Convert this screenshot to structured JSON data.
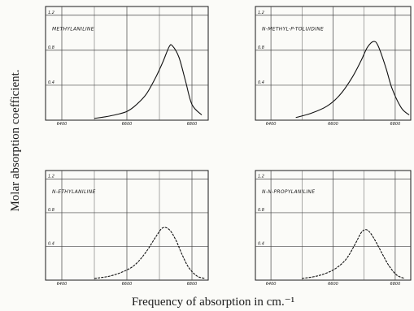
{
  "figure": {
    "ylabel": "Molar absorption coefficient.",
    "xlabel": "Frequency of absorption in cm.⁻¹"
  },
  "chart_data": [
    {
      "type": "line",
      "title": "Methylaniline",
      "title_display": "Methylaniline",
      "xlim": [
        6350,
        6850
      ],
      "ylim": [
        0.0,
        1.3
      ],
      "x_ticks": [
        6400,
        6600,
        6800
      ],
      "x_tick_labels": [
        "6400",
        "6600",
        "6800"
      ],
      "y_ticks": [
        0.4,
        0.8,
        1.2
      ],
      "y_tick_labels": [
        "0.4",
        "0.8",
        "1.2"
      ],
      "grid": true,
      "x": [
        6500,
        6550,
        6600,
        6630,
        6660,
        6690,
        6710,
        6730,
        6740,
        6760,
        6780,
        6800,
        6830
      ],
      "y": [
        0.02,
        0.05,
        0.1,
        0.18,
        0.3,
        0.5,
        0.66,
        0.84,
        0.85,
        0.72,
        0.45,
        0.18,
        0.06
      ]
    },
    {
      "type": "line",
      "title": "N-Methyl-p-Toluidine",
      "title_display": "N-Methyl-p-Toluidine",
      "xlim": [
        6350,
        6850
      ],
      "ylim": [
        0.0,
        1.3
      ],
      "x_ticks": [
        6400,
        6600,
        6800
      ],
      "x_tick_labels": [
        "6400",
        "6600",
        "6800"
      ],
      "y_ticks": [
        0.4,
        0.8,
        1.2
      ],
      "y_tick_labels": [
        "0.4",
        "0.8",
        "1.2"
      ],
      "grid": true,
      "x": [
        6480,
        6530,
        6580,
        6620,
        6660,
        6690,
        6710,
        6730,
        6745,
        6770,
        6790,
        6820,
        6845
      ],
      "y": [
        0.03,
        0.08,
        0.16,
        0.28,
        0.48,
        0.68,
        0.83,
        0.9,
        0.85,
        0.6,
        0.36,
        0.14,
        0.06
      ]
    },
    {
      "type": "line",
      "title": "N-Ethylaniline",
      "title_display": "N-Ethylaniline",
      "xlim": [
        6350,
        6850
      ],
      "ylim": [
        0.0,
        1.3
      ],
      "x_ticks": [
        6400,
        6600,
        6800
      ],
      "x_tick_labels": [
        "6400",
        "6600",
        "6800"
      ],
      "y_ticks": [
        0.4,
        0.8,
        1.2
      ],
      "y_tick_labels": [
        "0.4",
        "0.8",
        "1.2"
      ],
      "grid": true,
      "x": [
        6500,
        6550,
        6600,
        6630,
        6660,
        6690,
        6710,
        6730,
        6750,
        6770,
        6790,
        6815,
        6840
      ],
      "y": [
        0.02,
        0.05,
        0.12,
        0.2,
        0.34,
        0.52,
        0.62,
        0.6,
        0.48,
        0.3,
        0.15,
        0.05,
        0.02
      ]
    },
    {
      "type": "line",
      "title": "N-n-Propylaniline",
      "title_display": "N-n-Propylaniline",
      "xlim": [
        6350,
        6850
      ],
      "ylim": [
        0.0,
        1.3
      ],
      "x_ticks": [
        6400,
        6600,
        6800
      ],
      "x_tick_labels": [
        "6400",
        "6600",
        "6800"
      ],
      "y_ticks": [
        0.4,
        0.8,
        1.2
      ],
      "y_tick_labels": [
        "0.4",
        "0.8",
        "1.2"
      ],
      "grid": true,
      "x": [
        6500,
        6550,
        6600,
        6640,
        6670,
        6690,
        6705,
        6720,
        6740,
        6760,
        6780,
        6805,
        6830
      ],
      "y": [
        0.02,
        0.05,
        0.12,
        0.24,
        0.42,
        0.56,
        0.6,
        0.56,
        0.44,
        0.3,
        0.17,
        0.06,
        0.02
      ]
    }
  ]
}
